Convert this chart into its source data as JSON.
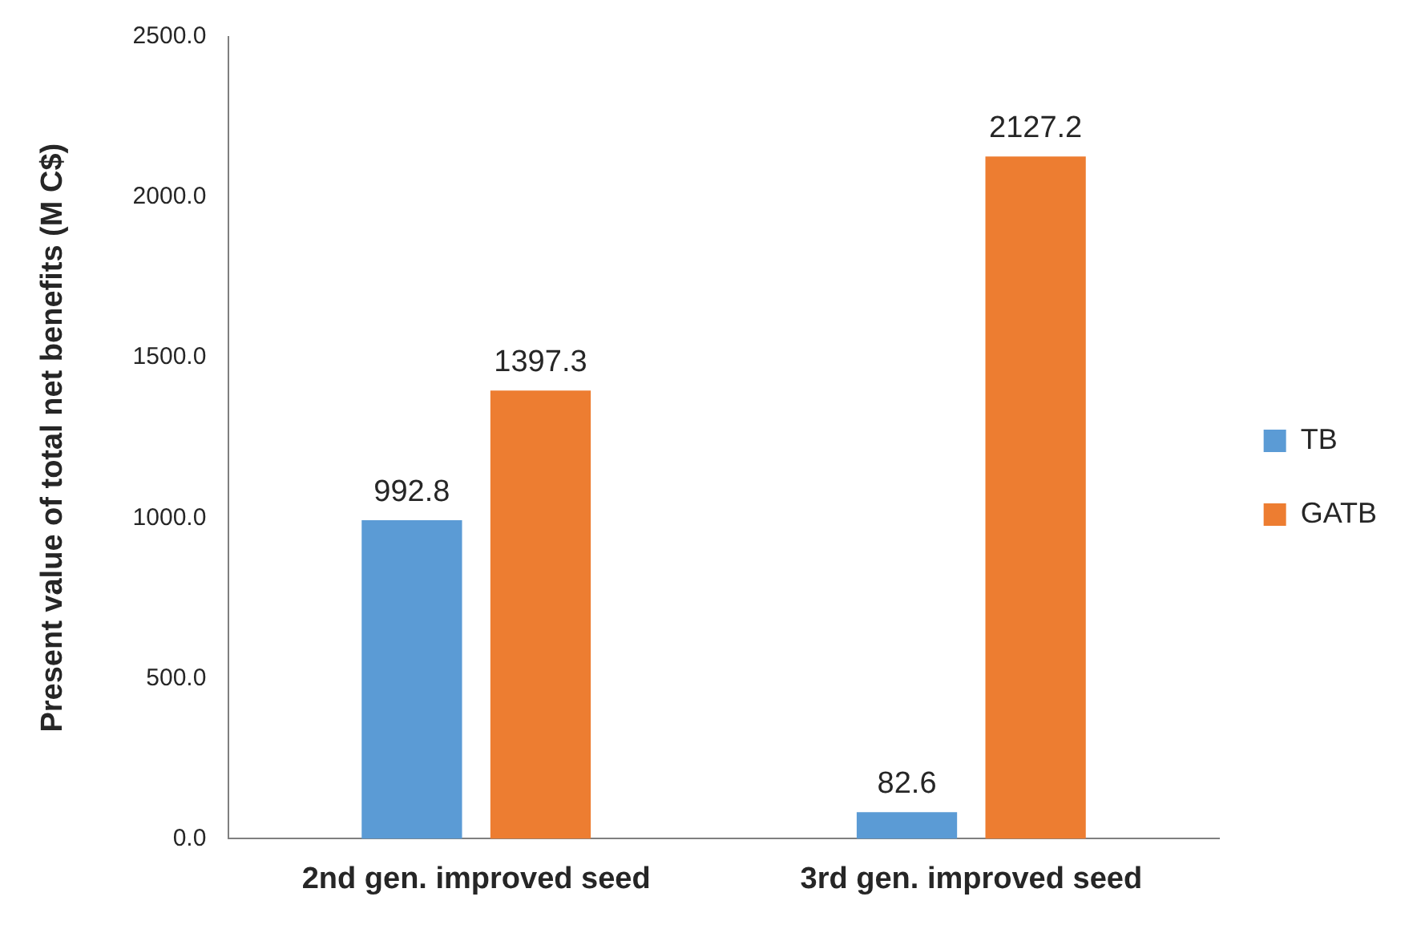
{
  "chart_data": {
    "type": "bar",
    "ylabel": "Present value of total net benefits (M C$)",
    "categories": [
      "2nd gen. improved seed",
      "3rd gen. improved seed"
    ],
    "series": [
      {
        "name": "TB",
        "color": "#5b9bd5",
        "values": [
          992.8,
          82.6
        ]
      },
      {
        "name": "GATB",
        "color": "#ed7d31",
        "values": [
          1397.3,
          2127.2
        ]
      }
    ],
    "ylim": [
      0,
      2500
    ],
    "yticks": [
      {
        "value": 0,
        "label": "0.0"
      },
      {
        "value": 500,
        "label": "500.0"
      },
      {
        "value": 1000,
        "label": "1000.0"
      },
      {
        "value": 1500,
        "label": "1500.0"
      },
      {
        "value": 2000,
        "label": "2000.0"
      },
      {
        "value": 2500,
        "label": "2500.0"
      }
    ],
    "grid": false,
    "legend": "right",
    "data_labels": true
  }
}
